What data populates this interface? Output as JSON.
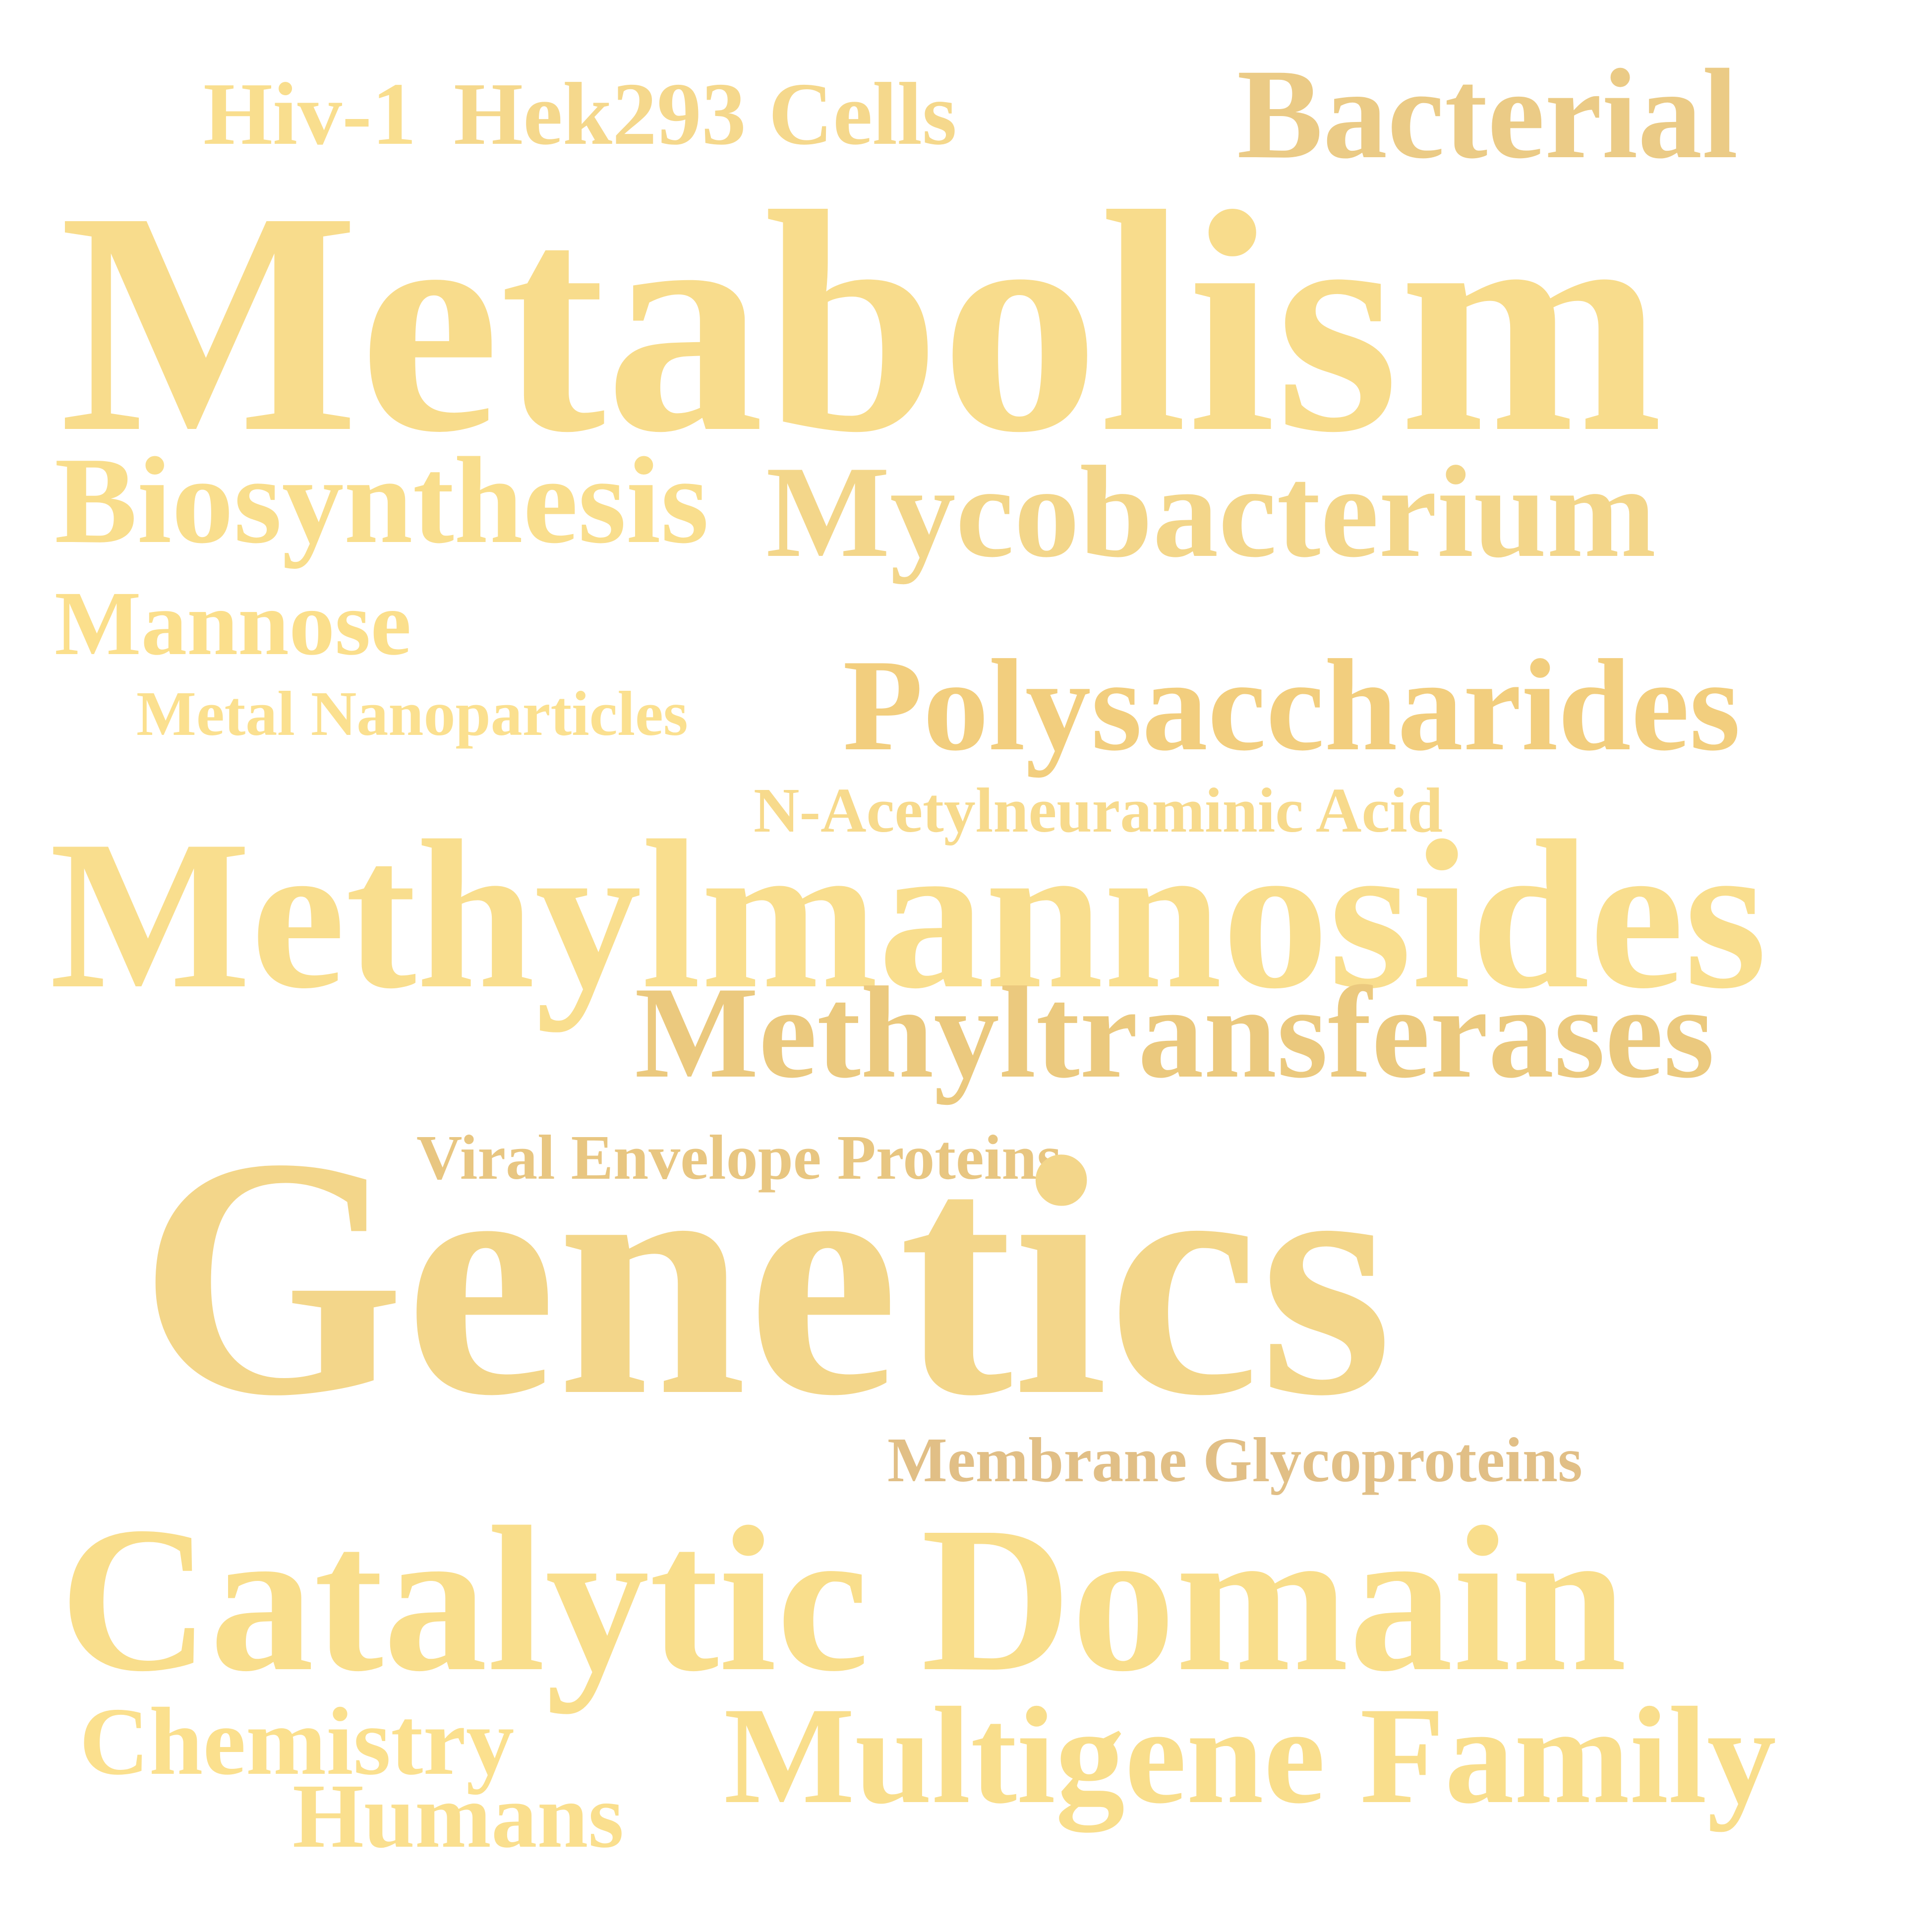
{
  "words": [
    {
      "id": "w-hiv",
      "text": "Hiv-1",
      "color": "#F9DE8E"
    },
    {
      "id": "w-hek",
      "text": "Hek293 Cells",
      "color": "#F5D88C"
    },
    {
      "id": "w-bacterial",
      "text": "Bacterial",
      "color": "#EBCB86"
    },
    {
      "id": "w-metabolism",
      "text": "Metabolism",
      "color": "#F8DC8C"
    },
    {
      "id": "w-biosynthesis",
      "text": "Biosynthesis",
      "color": "#F9DE8D"
    },
    {
      "id": "w-mycobacterium",
      "text": "Mycobacterium",
      "color": "#F3D68A"
    },
    {
      "id": "w-mannose",
      "text": "Mannose",
      "color": "#FBDF8C"
    },
    {
      "id": "w-metalnano",
      "text": "Metal Nanoparticles",
      "color": "#FBE08F"
    },
    {
      "id": "w-polysacch",
      "text": "Polysaccharides",
      "color": "#F2CE7E"
    },
    {
      "id": "w-nacetyl",
      "text": "N-Acetylneuraminic Acid",
      "color": "#F7DA8C"
    },
    {
      "id": "w-methylmann",
      "text": "Methylmannosides",
      "color": "#F9DE8E"
    },
    {
      "id": "w-methyltrans",
      "text": "Methyltransferases",
      "color": "#EBC97E"
    },
    {
      "id": "w-viral",
      "text": "Viral Envelope Proteins",
      "color": "#E8C681"
    },
    {
      "id": "w-genetics",
      "text": "Genetics",
      "color": "#F3D68A"
    },
    {
      "id": "w-membrane",
      "text": "Membrane Glycoproteins",
      "color": "#E1BF86"
    },
    {
      "id": "w-catalytic",
      "text": "Catalytic Domain",
      "color": "#F9DE8C"
    },
    {
      "id": "w-chemistry",
      "text": "Chemistry",
      "color": "#FBE08E"
    },
    {
      "id": "w-multigene",
      "text": "Multigene Family",
      "color": "#F9DE8C"
    },
    {
      "id": "w-humans",
      "text": "Humans",
      "color": "#FADF8E"
    }
  ]
}
